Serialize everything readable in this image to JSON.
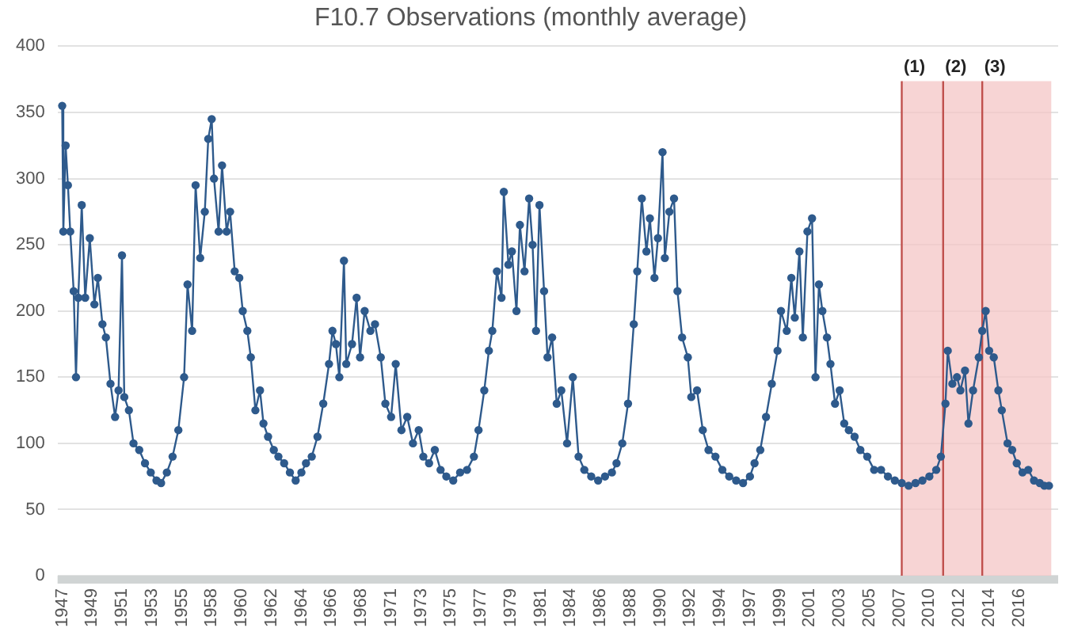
{
  "chart_data": {
    "type": "line",
    "title": "F10.7 Observations (monthly average)",
    "x": [
      "1947-03",
      "1947-04",
      "1947-06",
      "1947-08",
      "1947-10",
      "1948-01",
      "1948-03",
      "1948-05",
      "1948-08",
      "1948-11",
      "1949-03",
      "1949-07",
      "1949-10",
      "1950-02",
      "1950-05",
      "1950-09",
      "1951-01",
      "1951-04",
      "1951-07",
      "1951-09",
      "1952-01",
      "1952-05",
      "1952-10",
      "1953-03",
      "1953-08",
      "1954-01",
      "1954-05",
      "1954-10",
      "1955-03",
      "1955-08",
      "1956-01",
      "1956-04",
      "1956-08",
      "1956-11",
      "1957-03",
      "1957-07",
      "1957-10",
      "1958-01",
      "1958-03",
      "1958-07",
      "1958-10",
      "1959-02",
      "1959-05",
      "1959-09",
      "1960-01",
      "1960-04",
      "1960-08",
      "1960-11",
      "1961-03",
      "1961-07",
      "1961-10",
      "1962-02",
      "1962-07",
      "1962-11",
      "1963-04",
      "1963-09",
      "1964-02",
      "1964-07",
      "1964-11",
      "1965-04",
      "1965-09",
      "1966-02",
      "1966-07",
      "1966-10",
      "1967-01",
      "1967-04",
      "1967-08",
      "1967-10",
      "1968-03",
      "1968-07",
      "1968-10",
      "1969-02",
      "1969-07",
      "1969-11",
      "1970-04",
      "1970-08",
      "1971-01",
      "1971-05",
      "1971-10",
      "1972-03",
      "1972-08",
      "1973-01",
      "1973-05",
      "1973-10",
      "1974-03",
      "1974-08",
      "1975-01",
      "1975-07",
      "1976-01",
      "1976-07",
      "1977-01",
      "1977-05",
      "1977-10",
      "1978-02",
      "1978-05",
      "1978-09",
      "1979-01",
      "1979-03",
      "1979-07",
      "1979-10",
      "1980-02",
      "1980-05",
      "1980-09",
      "1981-01",
      "1981-04",
      "1981-07",
      "1981-10",
      "1982-02",
      "1982-05",
      "1982-09",
      "1983-01",
      "1983-05",
      "1983-10",
      "1984-03",
      "1984-08",
      "1985-01",
      "1985-07",
      "1986-01",
      "1986-07",
      "1987-01",
      "1987-05",
      "1987-10",
      "1988-03",
      "1988-08",
      "1988-11",
      "1989-03",
      "1989-07",
      "1989-10",
      "1990-02",
      "1990-05",
      "1990-09",
      "1990-11",
      "1991-03",
      "1991-07",
      "1991-10",
      "1992-02",
      "1992-07",
      "1992-10",
      "1993-03",
      "1993-08",
      "1994-01",
      "1994-07",
      "1995-01",
      "1995-07",
      "1996-01",
      "1996-07",
      "1997-01",
      "1997-05",
      "1997-10",
      "1998-03",
      "1998-08",
      "1999-01",
      "1999-04",
      "1999-09",
      "2000-01",
      "2000-04",
      "2000-08",
      "2000-11",
      "2001-03",
      "2001-07",
      "2001-10",
      "2002-01",
      "2002-04",
      "2002-08",
      "2002-11",
      "2003-03",
      "2003-07",
      "2003-11",
      "2004-03",
      "2004-08",
      "2005-01",
      "2005-07",
      "2006-01",
      "2006-07",
      "2007-01",
      "2007-07",
      "2008-01",
      "2008-07",
      "2009-01",
      "2009-07",
      "2010-01",
      "2010-07",
      "2010-11",
      "2011-03",
      "2011-05",
      "2011-09",
      "2012-01",
      "2012-04",
      "2012-08",
      "2012-11",
      "2013-03",
      "2013-08",
      "2013-11",
      "2014-02",
      "2014-05",
      "2014-09",
      "2015-01",
      "2015-04",
      "2015-09",
      "2016-01",
      "2016-05",
      "2016-10",
      "2017-03",
      "2017-08",
      "2018-01",
      "2018-05",
      "2018-09"
    ],
    "series": [
      {
        "color": "#2e5a8c",
        "values": [
          355,
          260,
          325,
          295,
          260,
          215,
          150,
          210,
          280,
          210,
          255,
          205,
          225,
          190,
          180,
          145,
          120,
          140,
          242,
          135,
          125,
          100,
          95,
          85,
          78,
          72,
          70,
          78,
          90,
          110,
          150,
          220,
          185,
          295,
          240,
          275,
          330,
          345,
          300,
          260,
          310,
          260,
          275,
          230,
          225,
          200,
          185,
          165,
          125,
          140,
          115,
          105,
          95,
          90,
          85,
          78,
          72,
          78,
          85,
          90,
          105,
          130,
          160,
          185,
          175,
          150,
          238,
          160,
          175,
          210,
          165,
          200,
          185,
          190,
          165,
          130,
          120,
          160,
          110,
          120,
          100,
          110,
          90,
          85,
          95,
          80,
          75,
          72,
          78,
          80,
          90,
          110,
          140,
          170,
          185,
          230,
          210,
          290,
          235,
          245,
          200,
          265,
          230,
          285,
          250,
          185,
          280,
          215,
          165,
          180,
          130,
          140,
          100,
          150,
          90,
          80,
          75,
          72,
          75,
          78,
          85,
          100,
          130,
          190,
          230,
          285,
          245,
          270,
          225,
          255,
          320,
          240,
          275,
          285,
          215,
          180,
          165,
          135,
          140,
          110,
          95,
          90,
          80,
          75,
          72,
          70,
          75,
          85,
          95,
          120,
          145,
          170,
          200,
          185,
          225,
          195,
          245,
          180,
          260,
          270,
          150,
          220,
          200,
          180,
          160,
          130,
          140,
          115,
          110,
          105,
          95,
          90,
          80,
          80,
          75,
          72,
          70,
          68,
          70,
          72,
          75,
          80,
          90,
          130,
          170,
          145,
          150,
          140,
          155,
          115,
          140,
          165,
          185,
          200,
          170,
          165,
          140,
          125,
          100,
          95,
          85,
          78,
          80,
          72,
          70,
          68,
          68
        ]
      }
    ],
    "xlim": [
      "1946-11",
      "2019-05"
    ],
    "xticks": [
      {
        "value": "1947-03",
        "label": "1947"
      },
      {
        "value": "1949-05",
        "label": "1949"
      },
      {
        "value": "1951-07",
        "label": "1951"
      },
      {
        "value": "1953-09",
        "label": "1953"
      },
      {
        "value": "1955-11",
        "label": "1955"
      },
      {
        "value": "1958-01",
        "label": "1958"
      },
      {
        "value": "1960-03",
        "label": "1960"
      },
      {
        "value": "1962-05",
        "label": "1962"
      },
      {
        "value": "1964-07",
        "label": "1964"
      },
      {
        "value": "1966-09",
        "label": "1966"
      },
      {
        "value": "1968-11",
        "label": "1968"
      },
      {
        "value": "1971-01",
        "label": "1971"
      },
      {
        "value": "1973-03",
        "label": "1973"
      },
      {
        "value": "1975-05",
        "label": "1975"
      },
      {
        "value": "1977-07",
        "label": "1977"
      },
      {
        "value": "1979-09",
        "label": "1979"
      },
      {
        "value": "1981-11",
        "label": "1981"
      },
      {
        "value": "1984-01",
        "label": "1984"
      },
      {
        "value": "1986-03",
        "label": "1986"
      },
      {
        "value": "1988-05",
        "label": "1988"
      },
      {
        "value": "1990-07",
        "label": "1990"
      },
      {
        "value": "1992-09",
        "label": "1992"
      },
      {
        "value": "1994-11",
        "label": "1994"
      },
      {
        "value": "1997-01",
        "label": "1997"
      },
      {
        "value": "1999-03",
        "label": "1999"
      },
      {
        "value": "2001-05",
        "label": "2001"
      },
      {
        "value": "2003-07",
        "label": "2003"
      },
      {
        "value": "2005-09",
        "label": "2005"
      },
      {
        "value": "2007-11",
        "label": "2007"
      },
      {
        "value": "2010-01",
        "label": "2010"
      },
      {
        "value": "2012-03",
        "label": "2012"
      },
      {
        "value": "2014-05",
        "label": "2014"
      },
      {
        "value": "2016-07",
        "label": "2016"
      }
    ],
    "ylim": [
      0,
      400
    ],
    "yticks": [
      0,
      50,
      100,
      150,
      200,
      250,
      300,
      350,
      400
    ],
    "grid": "y",
    "marker": "circle",
    "line_style": "solid",
    "bands": [
      {
        "axis": "x",
        "from": "2008-01",
        "to": "2018-11",
        "color": "#f4c6c6"
      }
    ],
    "ref_lines": [
      {
        "axis": "x",
        "value": "2008-01",
        "label": "(1)",
        "color": "#c0504d"
      },
      {
        "axis": "x",
        "value": "2011-01",
        "label": "(2)",
        "color": "#c0504d"
      },
      {
        "axis": "x",
        "value": "2013-11",
        "label": "(3)",
        "color": "#c0504d"
      }
    ]
  }
}
